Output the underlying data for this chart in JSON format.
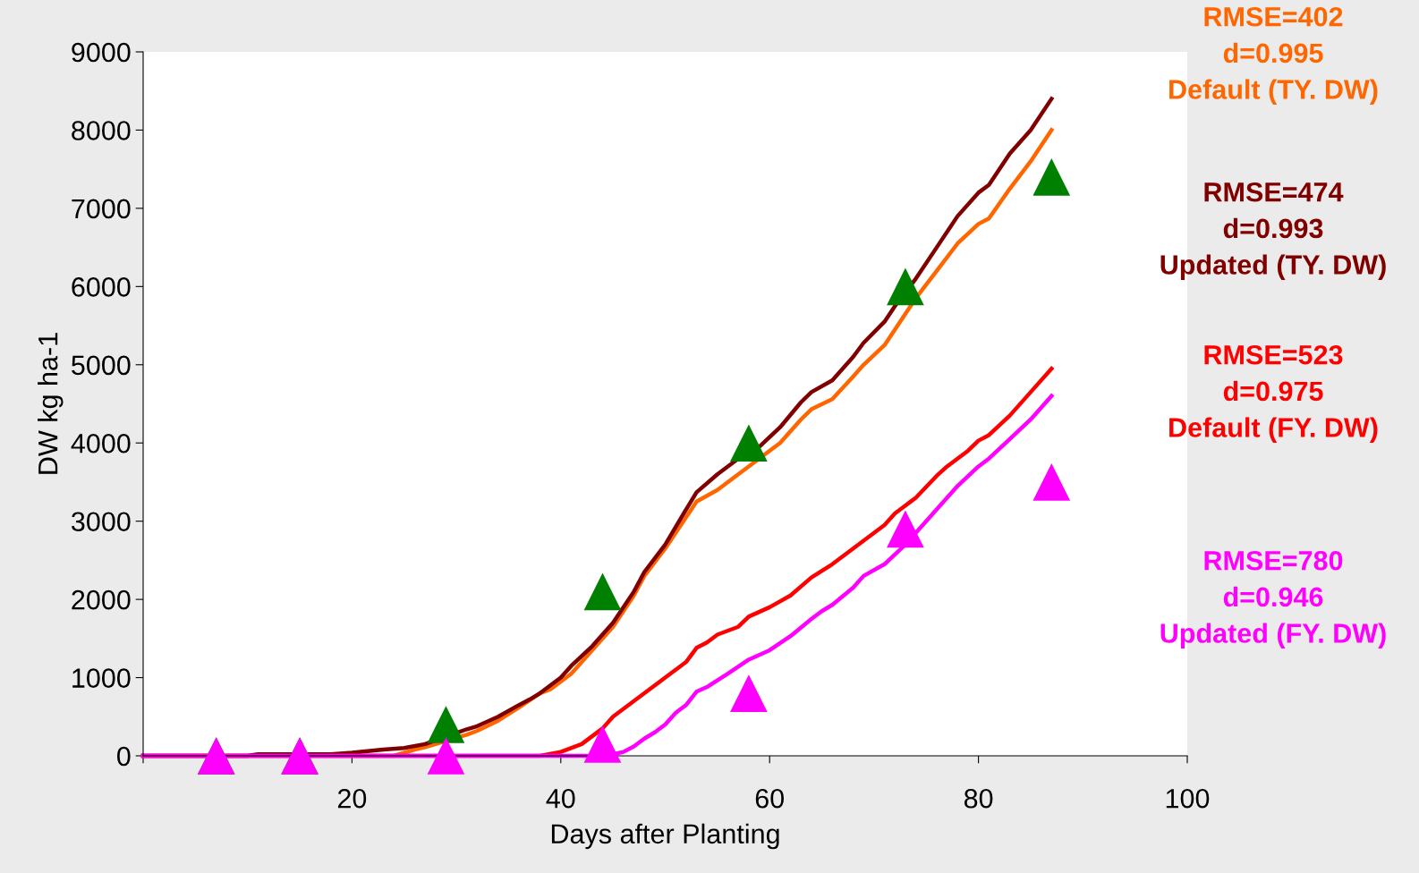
{
  "chart_data": {
    "type": "line",
    "xlabel": "Days after Planting",
    "ylabel": "DW kg ha-1",
    "xlim": [
      0,
      100
    ],
    "xticks": [
      {
        "value": 0,
        "label": null
      },
      20,
      40,
      60,
      80,
      100
    ],
    "ylim": [
      0,
      9000
    ],
    "yticks": [
      0,
      1000,
      2000,
      3000,
      4000,
      5000,
      6000,
      7000,
      8000,
      9000
    ],
    "grid": false,
    "legend": false,
    "series": [
      {
        "name": "RMSE=402\nd=0.995\nDefault (TY. DW)",
        "color": "#ff6600",
        "marker": "none",
        "x": [
          0,
          24,
          26,
          27,
          31,
          32,
          34,
          36,
          38,
          39,
          41,
          43,
          45,
          47,
          48,
          50,
          52,
          53,
          55,
          57,
          59,
          61,
          63,
          64,
          66,
          68,
          69,
          71,
          72,
          74,
          76,
          78,
          80,
          81,
          83,
          85,
          87
        ],
        "values": [
          0,
          0,
          80,
          110,
          270,
          320,
          450,
          620,
          800,
          850,
          1050,
          1350,
          1650,
          2050,
          2300,
          2650,
          3050,
          3250,
          3400,
          3600,
          3800,
          4000,
          4300,
          4430,
          4560,
          4850,
          5000,
          5250,
          5450,
          5850,
          6200,
          6550,
          6800,
          6870,
          7250,
          7600,
          8000
        ]
      },
      {
        "name": "RMSE=474\nd=0.993\nUpdated (TY. DW)",
        "color": "#800000",
        "marker": "none",
        "x": [
          0,
          10,
          11,
          18,
          20,
          23,
          25,
          27,
          31,
          32,
          34,
          36,
          37,
          38,
          39,
          40,
          41,
          43,
          45,
          47,
          48,
          50,
          52,
          53,
          55,
          57,
          59,
          61,
          63,
          64,
          66,
          68,
          69,
          71,
          72,
          74,
          76,
          78,
          80,
          81,
          83,
          85,
          87
        ],
        "values": [
          0,
          0,
          20,
          20,
          40,
          80,
          100,
          150,
          340,
          380,
          500,
          650,
          720,
          800,
          900,
          1000,
          1150,
          1400,
          1700,
          2100,
          2350,
          2700,
          3150,
          3370,
          3600,
          3800,
          3950,
          4200,
          4520,
          4650,
          4800,
          5100,
          5280,
          5550,
          5750,
          6100,
          6500,
          6900,
          7200,
          7300,
          7700,
          8000,
          8400
        ]
      },
      {
        "name": "RMSE=523\nd=0.975\nDefault (FY. DW)",
        "color": "#ff0000",
        "marker": "none",
        "x": [
          0,
          38,
          40,
          42,
          44,
          45,
          46,
          48,
          50,
          52,
          53,
          54,
          55,
          57,
          58,
          60,
          62,
          64,
          66,
          68,
          70,
          71,
          72,
          73,
          74,
          76,
          77,
          79,
          80,
          81,
          83,
          85,
          87
        ],
        "values": [
          0,
          0,
          50,
          150,
          350,
          500,
          600,
          800,
          1000,
          1200,
          1380,
          1450,
          1550,
          1650,
          1780,
          1900,
          2050,
          2280,
          2450,
          2650,
          2850,
          2950,
          3100,
          3200,
          3300,
          3580,
          3700,
          3900,
          4030,
          4100,
          4350,
          4650,
          4950
        ]
      },
      {
        "name": "RMSE=780\nd=0.946\nUpdated (FY. DW)",
        "color": "#ff00ff",
        "marker": "none",
        "x": [
          0,
          44,
          45,
          46,
          47,
          48,
          49,
          50,
          51,
          52,
          53,
          54,
          56,
          58,
          60,
          62,
          64,
          65,
          66,
          68,
          69,
          71,
          73,
          74,
          76,
          78,
          80,
          81,
          83,
          85,
          87
        ],
        "values": [
          0,
          0,
          20,
          50,
          120,
          220,
          300,
          400,
          550,
          650,
          820,
          880,
          1050,
          1230,
          1350,
          1530,
          1750,
          1850,
          1930,
          2150,
          2300,
          2450,
          2700,
          2850,
          3150,
          3450,
          3700,
          3800,
          4050,
          4300,
          4600
        ]
      },
      {
        "color": "#008000",
        "type": "scatter",
        "marker": "triangle",
        "x": [
          7,
          15,
          29,
          44,
          58,
          73,
          87
        ],
        "values": [
          0,
          0,
          400,
          2100,
          4000,
          6000,
          7400
        ]
      },
      {
        "color": "#ff00ff",
        "type": "scatter",
        "marker": "triangle",
        "x": [
          7,
          15,
          29,
          44,
          58,
          73,
          87
        ],
        "values": [
          0,
          0,
          0,
          150,
          800,
          2900,
          3500
        ]
      }
    ]
  }
}
